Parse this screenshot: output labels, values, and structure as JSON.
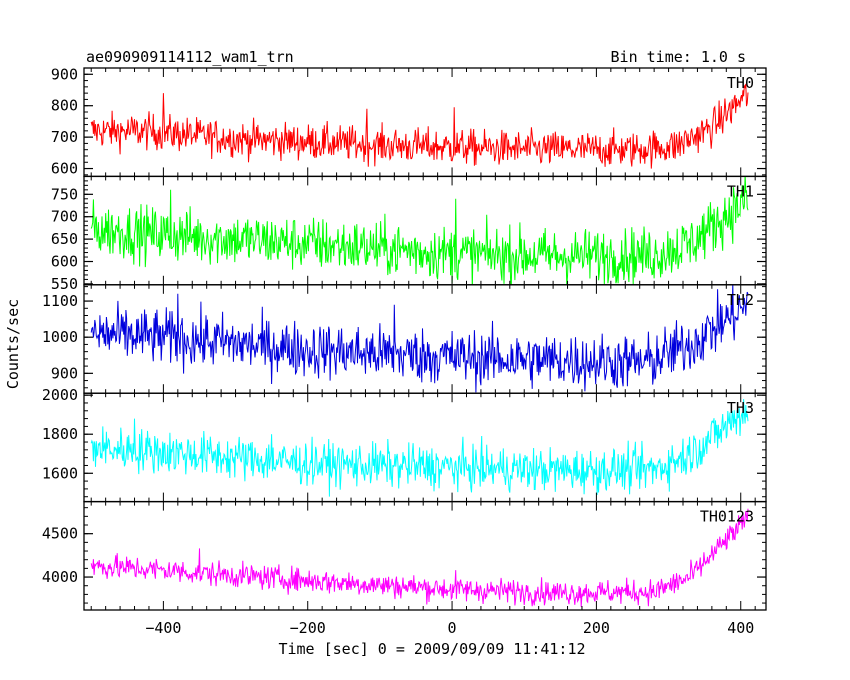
{
  "chart_data": {
    "type": "line",
    "title": "ae090909114112_wam1_trn",
    "subtitle": "Bin time: 1.0 s",
    "xlabel": "Time [sec] 0 = 2009/09/09 11:41:12",
    "ylabel": "Counts/sec",
    "xlim": [
      -510,
      435
    ],
    "x_ticks": [
      "−400",
      "−200",
      "0",
      "200",
      "400"
    ],
    "x_tick_values": [
      -400,
      -200,
      0,
      200,
      400
    ],
    "x_range": [
      -500,
      410
    ],
    "panels": [
      {
        "name": "TH0",
        "color": "#ff0000",
        "ylim": [
          575,
          920
        ],
        "y_ticks": [
          "600",
          "700",
          "800",
          "900"
        ],
        "y_tick_values": [
          600,
          700,
          800,
          900
        ],
        "trend": [
          [
            -500,
            720
          ],
          [
            -420,
            718
          ],
          [
            -300,
            695
          ],
          [
            -100,
            675
          ],
          [
            0,
            668
          ],
          [
            100,
            662
          ],
          [
            250,
            660
          ],
          [
            310,
            672
          ],
          [
            360,
            730
          ],
          [
            410,
            840
          ]
        ],
        "noise": 28,
        "events": [
          [
            -400,
            840
          ],
          [
            3,
            795
          ],
          [
            -118,
            790
          ]
        ]
      },
      {
        "name": "TH1",
        "color": "#00ff00",
        "ylim": [
          548,
          790
        ],
        "y_ticks": [
          "550",
          "600",
          "650",
          "700",
          "750"
        ],
        "y_tick_values": [
          550,
          600,
          650,
          700,
          750
        ],
        "trend": [
          [
            -500,
            672
          ],
          [
            -400,
            660
          ],
          [
            -200,
            640
          ],
          [
            0,
            618
          ],
          [
            150,
            612
          ],
          [
            280,
            615
          ],
          [
            330,
            640
          ],
          [
            410,
            740
          ]
        ],
        "noise": 30,
        "events": [
          [
            -390,
            760
          ],
          [
            5,
            740
          ]
        ]
      },
      {
        "name": "TH2",
        "color": "#0000dd",
        "ylim": [
          845,
          1145
        ],
        "y_ticks": [
          "900",
          "1000",
          "1100"
        ],
        "y_tick_values": [
          900,
          1000,
          1100
        ],
        "trend": [
          [
            -500,
            1010
          ],
          [
            -400,
            1000
          ],
          [
            -200,
            965
          ],
          [
            0,
            945
          ],
          [
            150,
            935
          ],
          [
            270,
            930
          ],
          [
            330,
            980
          ],
          [
            410,
            1090
          ]
        ],
        "noise": 38,
        "events": [
          [
            -380,
            1120
          ],
          [
            -80,
            1090
          ]
        ]
      },
      {
        "name": "TH3",
        "color": "#00ffff",
        "ylim": [
          1455,
          2010
        ],
        "y_ticks": [
          "1600",
          "1800",
          "2000"
        ],
        "y_tick_values": [
          1600,
          1800,
          2000
        ],
        "trend": [
          [
            -500,
            1730
          ],
          [
            -400,
            1710
          ],
          [
            -200,
            1650
          ],
          [
            0,
            1630
          ],
          [
            150,
            1615
          ],
          [
            280,
            1620
          ],
          [
            330,
            1700
          ],
          [
            410,
            1930
          ]
        ],
        "noise": 55,
        "events": [
          [
            -440,
            1880
          ],
          [
            -250,
            1800
          ]
        ]
      },
      {
        "name": "TH0123",
        "color": "#ff00ff",
        "ylim": [
          3620,
          4870
        ],
        "y_ticks": [
          "4000",
          "4500"
        ],
        "y_tick_values": [
          4000,
          4500
        ],
        "trend": [
          [
            -500,
            4130
          ],
          [
            -400,
            4080
          ],
          [
            -200,
            3960
          ],
          [
            0,
            3860
          ],
          [
            150,
            3820
          ],
          [
            280,
            3830
          ],
          [
            330,
            4000
          ],
          [
            410,
            4680
          ]
        ],
        "noise": 70,
        "events": [
          [
            -350,
            4330
          ],
          [
            5,
            4080
          ]
        ]
      }
    ]
  }
}
